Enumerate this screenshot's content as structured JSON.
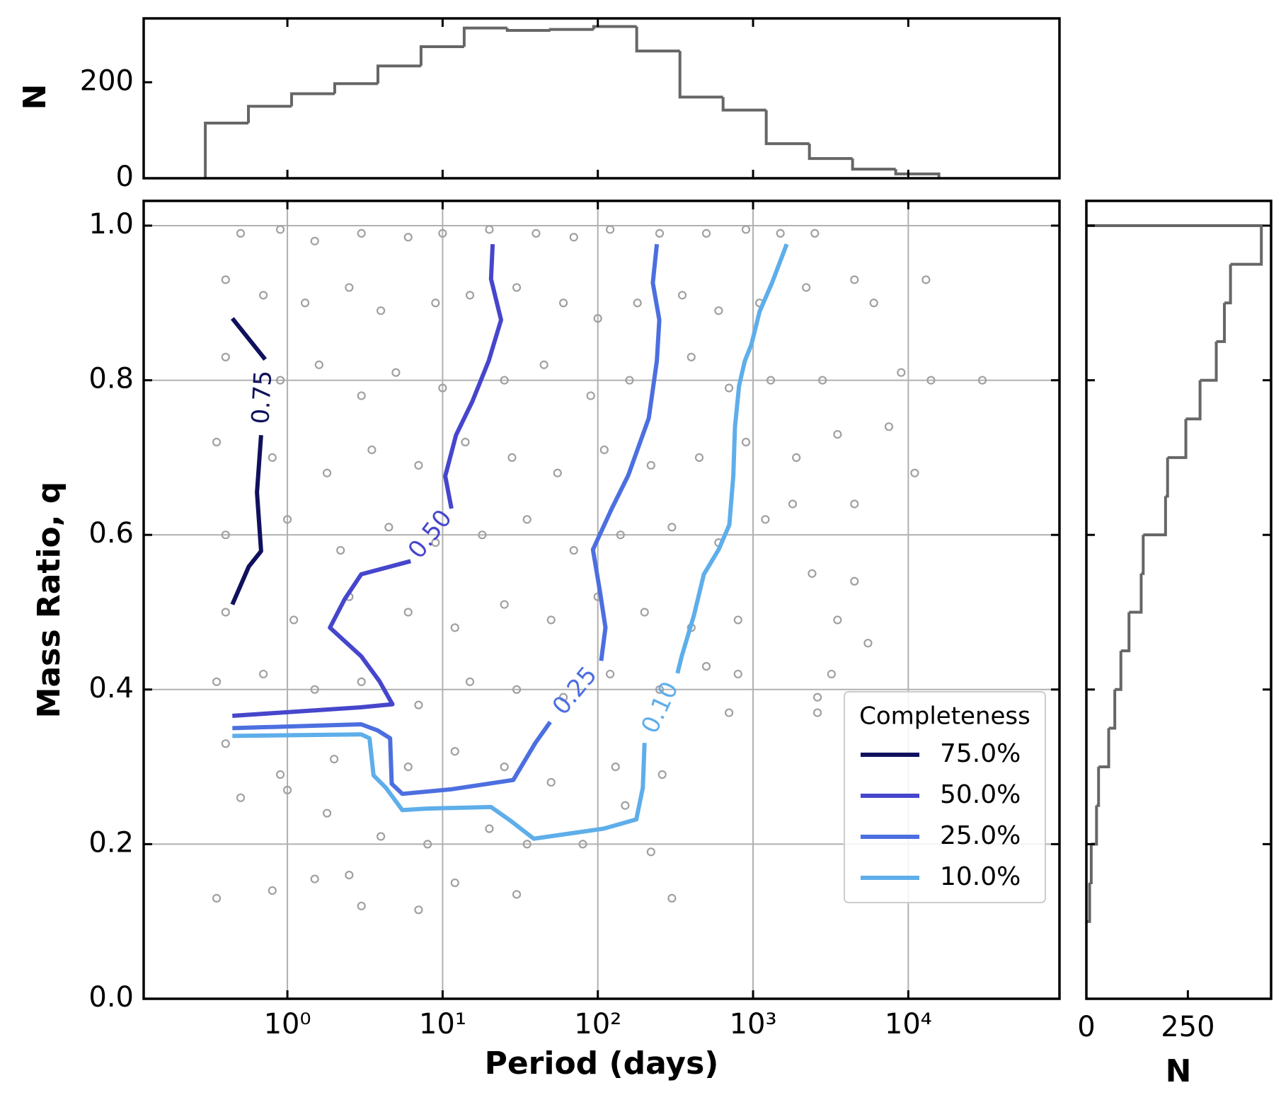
{
  "chart_data": [
    {
      "type": "histogram",
      "orientation": "vertical",
      "ylabel": "N",
      "color": "#666666",
      "bins": [
        0.296,
        0.561,
        1.064,
        2.018,
        3.83,
        7.26,
        13.77,
        26.1,
        49.5,
        94.0,
        178,
        338,
        641,
        1216,
        2307,
        4375,
        8299,
        15740
      ],
      "values": [
        115,
        150,
        176,
        197,
        234,
        274,
        313,
        308,
        310,
        316,
        265,
        169,
        142,
        72,
        41,
        19,
        9
      ],
      "ylim": [
        0,
        333
      ],
      "yticks": [
        0,
        200
      ]
    },
    {
      "type": "scatter",
      "xlabel": "Period (days)",
      "ylabel": "Mass Ratio, q",
      "log_x": true,
      "grid": true,
      "xlim": [
        0.1186,
        94200
      ],
      "xticks": [
        {
          "value": 1,
          "label": "10⁰"
        },
        {
          "value": 10,
          "label": "10¹"
        },
        {
          "value": 100,
          "label": "10²"
        },
        {
          "value": 1000,
          "label": "10³"
        },
        {
          "value": 10000,
          "label": "10⁴"
        }
      ],
      "ylim": [
        0,
        1.032
      ],
      "yticks": [
        {
          "value": 0,
          "label": "0.0"
        },
        {
          "value": 0.2,
          "label": "0.2"
        },
        {
          "value": 0.4,
          "label": "0.4"
        },
        {
          "value": 0.6,
          "label": "0.6"
        },
        {
          "value": 0.8,
          "label": "0.8"
        },
        {
          "value": 1,
          "label": "1.0"
        }
      ],
      "points": {
        "color": "#a0a0a0",
        "x": [
          0.5,
          0.9,
          1.5,
          3,
          6,
          10,
          20,
          40,
          70,
          120,
          250,
          500,
          900,
          1500,
          2500,
          0.4,
          0.7,
          1.3,
          2.5,
          4,
          9,
          15,
          30,
          60,
          100,
          180,
          350,
          600,
          1100,
          2200,
          4500,
          13000,
          6000,
          0.4,
          0.9,
          1.6,
          3,
          5,
          10,
          25,
          45,
          90,
          160,
          400,
          700,
          1300,
          2800,
          9000,
          14000,
          30000,
          0.35,
          0.8,
          1.8,
          3.5,
          7,
          14,
          28,
          55,
          110,
          220,
          450,
          900,
          1900,
          3500,
          7500,
          11000,
          0.4,
          1,
          2.2,
          4.5,
          9,
          18,
          35,
          70,
          140,
          300,
          600,
          1200,
          1800,
          4500,
          0.4,
          1.1,
          2.5,
          6,
          12,
          25,
          50,
          100,
          200,
          400,
          800,
          2400,
          4500,
          3500,
          0.35,
          0.7,
          1.5,
          3,
          7,
          15,
          30,
          60,
          120,
          250,
          500,
          800,
          2600,
          5500,
          3200,
          0.4,
          0.9,
          2,
          6,
          12,
          25,
          50,
          130,
          260,
          2600,
          700,
          0.5,
          1,
          1.8,
          4,
          8,
          20,
          35,
          80,
          150,
          220,
          0.35,
          0.8,
          1.5,
          3,
          7,
          12,
          30,
          300,
          2.5
        ],
        "y": [
          0.99,
          0.995,
          0.98,
          0.99,
          0.985,
          0.99,
          0.995,
          0.99,
          0.985,
          0.995,
          0.99,
          0.99,
          0.995,
          0.99,
          0.99,
          0.93,
          0.91,
          0.9,
          0.92,
          0.89,
          0.9,
          0.91,
          0.92,
          0.9,
          0.88,
          0.9,
          0.91,
          0.89,
          0.9,
          0.92,
          0.93,
          0.93,
          0.9,
          0.83,
          0.8,
          0.82,
          0.78,
          0.81,
          0.79,
          0.8,
          0.82,
          0.78,
          0.8,
          0.83,
          0.79,
          0.8,
          0.8,
          0.81,
          0.8,
          0.8,
          0.72,
          0.7,
          0.68,
          0.71,
          0.69,
          0.72,
          0.7,
          0.68,
          0.71,
          0.69,
          0.7,
          0.72,
          0.7,
          0.73,
          0.74,
          0.68,
          0.6,
          0.62,
          0.58,
          0.61,
          0.59,
          0.6,
          0.62,
          0.58,
          0.6,
          0.61,
          0.59,
          0.62,
          0.64,
          0.64,
          0.5,
          0.49,
          0.52,
          0.5,
          0.48,
          0.51,
          0.49,
          0.52,
          0.5,
          0.48,
          0.49,
          0.55,
          0.54,
          0.49,
          0.41,
          0.42,
          0.4,
          0.41,
          0.38,
          0.41,
          0.4,
          0.39,
          0.42,
          0.4,
          0.43,
          0.42,
          0.39,
          0.46,
          0.42,
          0.33,
          0.29,
          0.31,
          0.3,
          0.32,
          0.3,
          0.28,
          0.3,
          0.29,
          0.37,
          0.37,
          0.26,
          0.27,
          0.24,
          0.21,
          0.2,
          0.22,
          0.2,
          0.2,
          0.25,
          0.19,
          0.13,
          0.14,
          0.155,
          0.12,
          0.115,
          0.15,
          0.135,
          0.13,
          0.16
        ]
      },
      "contours": [
        {
          "name": "75.0%",
          "label": "0.75",
          "color": "#10105e",
          "x": [
            0.442,
            0.719,
            null,
            0.677,
            0.637,
            0.677,
            0.564,
            0.442
          ],
          "y": [
            0.88,
            0.827,
            null,
            0.729,
            0.655,
            0.579,
            0.559,
            0.51
          ]
        },
        {
          "name": "50.0%",
          "label": "0.50",
          "color": "#4646cc",
          "x": [
            21.0,
            20.5,
            23.8,
            19.8,
            15.5,
            12.2,
            10.4,
            11.4,
            null,
            6.22,
            2.99,
            2.34,
            1.88,
            2.99,
            3.91,
            4.75,
            2.99,
            0.442
          ],
          "y": [
            0.976,
            0.931,
            0.878,
            0.825,
            0.772,
            0.729,
            0.676,
            0.634,
            null,
            0.566,
            0.549,
            0.517,
            0.48,
            0.443,
            0.411,
            0.381,
            0.377,
            0.366
          ]
        },
        {
          "name": "25.0%",
          "label": "0.25",
          "color": "#4c6fe0",
          "x": [
            240,
            226,
            249,
            240,
            213,
            157,
            123,
            93,
            103,
            112,
            105,
            null,
            49.3,
            39.6,
            28.5,
            11.4,
            5.5,
            4.7,
            4.59,
            3.82,
            2.99,
            0.442
          ],
          "y": [
            0.976,
            0.926,
            0.878,
            0.825,
            0.751,
            0.677,
            0.634,
            0.581,
            0.528,
            0.48,
            0.437,
            null,
            0.358,
            0.331,
            0.283,
            0.271,
            0.265,
            0.278,
            0.337,
            0.347,
            0.355,
            0.35
          ]
        },
        {
          "name": "10.0%",
          "label": "0.10",
          "color": "#5eaeea",
          "x": [
            1648,
            1324,
            1102,
            975,
            885,
            813,
            765,
            746,
            703,
            600,
            482,
            416,
            347,
            326,
            null,
            200,
            195,
            177,
            109,
            38.7,
            27.5,
            20.5,
            7.93,
            5.5,
            4.31,
            3.59,
            3.38,
            2.99,
            0.442
          ],
          "y": [
            0.976,
            0.926,
            0.889,
            0.846,
            0.825,
            0.793,
            0.74,
            0.676,
            0.613,
            0.581,
            0.549,
            0.496,
            0.443,
            0.421,
            null,
            0.331,
            0.273,
            0.232,
            0.22,
            0.207,
            0.23,
            0.248,
            0.246,
            0.244,
            0.273,
            0.289,
            0.337,
            0.342,
            0.34
          ]
        }
      ],
      "legend": {
        "title": "Completeness",
        "corner": "lower right"
      }
    },
    {
      "type": "histogram",
      "orientation": "horizontal",
      "xlabel": "N",
      "color": "#666666",
      "bins": [
        0.1,
        0.15,
        0.2,
        0.25,
        0.3,
        0.35,
        0.4,
        0.45,
        0.5,
        0.55,
        0.6,
        0.65,
        0.7,
        0.75,
        0.8,
        0.85,
        0.9,
        0.95,
        1.0
      ],
      "values": [
        8,
        12,
        25,
        30,
        55,
        70,
        85,
        105,
        135,
        140,
        195,
        200,
        245,
        280,
        320,
        340,
        355,
        431
      ],
      "xlim": [
        0,
        455
      ],
      "xticks": [
        0,
        250
      ]
    }
  ]
}
